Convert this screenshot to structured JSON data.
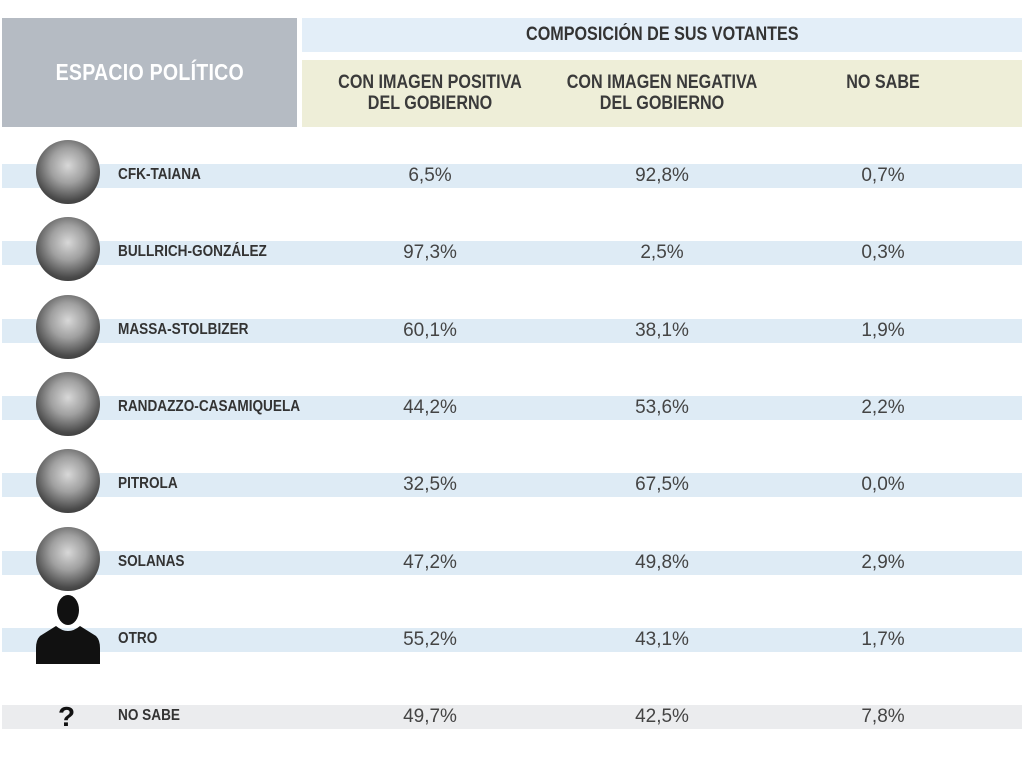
{
  "header": {
    "left": "ESPACIO POLÍTICO",
    "group": "COMPOSICIÓN DE SUS VOTANTES",
    "columns": [
      "CON IMAGEN POSITIVA\nDEL GOBIERNO",
      "CON IMAGEN NEGATIVA\nDEL GOBIERNO",
      "NO SABE"
    ]
  },
  "colors": {
    "header_gray": "#b5bbc3",
    "header_blue": "#e3eef8",
    "header_yellow": "#eeeed8",
    "row_blue": "#deebf5",
    "row_gray": "#ebecee"
  },
  "chart_data": {
    "type": "table",
    "columns": [
      "ESPACIO POLÍTICO",
      "CON IMAGEN POSITIVA DEL GOBIERNO",
      "CON IMAGEN NEGATIVA DEL GOBIERNO",
      "NO SABE"
    ],
    "rows": [
      {
        "name": "CFK-TAIANA",
        "icon": "photo",
        "values": [
          "6,5%",
          "92,8%",
          "0,7%"
        ]
      },
      {
        "name": "BULLRICH-GONZÁLEZ",
        "icon": "photo",
        "values": [
          "97,3%",
          "2,5%",
          "0,3%"
        ]
      },
      {
        "name": "MASSA-STOLBIZER",
        "icon": "photo",
        "values": [
          "60,1%",
          "38,1%",
          "1,9%"
        ]
      },
      {
        "name": "RANDAZZO-CASAMIQUELA",
        "icon": "photo",
        "values": [
          "44,2%",
          "53,6%",
          "2,2%"
        ]
      },
      {
        "name": "PITROLA",
        "icon": "photo",
        "values": [
          "32,5%",
          "67,5%",
          "0,0%"
        ]
      },
      {
        "name": "SOLANAS",
        "icon": "photo",
        "values": [
          "47,2%",
          "49,8%",
          "2,9%"
        ]
      },
      {
        "name": "OTRO",
        "icon": "person-silhouette",
        "values": [
          "55,2%",
          "43,1%",
          "1,7%"
        ]
      },
      {
        "name": "NO SABE",
        "icon": "question-mark",
        "values": [
          "49,7%",
          "42,5%",
          "7,8%"
        ]
      }
    ]
  }
}
